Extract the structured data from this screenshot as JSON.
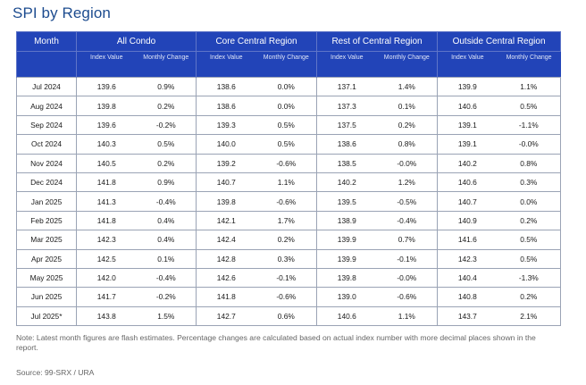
{
  "title": "SPI by Region",
  "headers": {
    "month": "Month",
    "regions": [
      "All Condo",
      "Core Central Region",
      "Rest of Central Region",
      "Outside Central Region"
    ],
    "index_value": "Index Value",
    "monthly_change": "Monthly Change"
  },
  "rows": [
    {
      "month": "Jul 2024",
      "values": [
        "139.6",
        "0.9%",
        "138.6",
        "0.0%",
        "137.1",
        "1.4%",
        "139.9",
        "1.1%"
      ]
    },
    {
      "month": "Aug 2024",
      "values": [
        "139.8",
        "0.2%",
        "138.6",
        "0.0%",
        "137.3",
        "0.1%",
        "140.6",
        "0.5%"
      ]
    },
    {
      "month": "Sep 2024",
      "values": [
        "139.6",
        "-0.2%",
        "139.3",
        "0.5%",
        "137.5",
        "0.2%",
        "139.1",
        "-1.1%"
      ]
    },
    {
      "month": "Oct 2024",
      "values": [
        "140.3",
        "0.5%",
        "140.0",
        "0.5%",
        "138.6",
        "0.8%",
        "139.1",
        "-0.0%"
      ]
    },
    {
      "month": "Nov 2024",
      "values": [
        "140.5",
        "0.2%",
        "139.2",
        "-0.6%",
        "138.5",
        "-0.0%",
        "140.2",
        "0.8%"
      ]
    },
    {
      "month": "Dec 2024",
      "values": [
        "141.8",
        "0.9%",
        "140.7",
        "1.1%",
        "140.2",
        "1.2%",
        "140.6",
        "0.3%"
      ]
    },
    {
      "month": "Jan 2025",
      "values": [
        "141.3",
        "-0.4%",
        "139.8",
        "-0.6%",
        "139.5",
        "-0.5%",
        "140.7",
        "0.0%"
      ]
    },
    {
      "month": "Feb 2025",
      "values": [
        "141.8",
        "0.4%",
        "142.1",
        "1.7%",
        "138.9",
        "-0.4%",
        "140.9",
        "0.2%"
      ]
    },
    {
      "month": "Mar 2025",
      "values": [
        "142.3",
        "0.4%",
        "142.4",
        "0.2%",
        "139.9",
        "0.7%",
        "141.6",
        "0.5%"
      ]
    },
    {
      "month": "Apr 2025",
      "values": [
        "142.5",
        "0.1%",
        "142.8",
        "0.3%",
        "139.9",
        "-0.1%",
        "142.3",
        "0.5%"
      ]
    },
    {
      "month": "May 2025",
      "values": [
        "142.0",
        "-0.4%",
        "142.6",
        "-0.1%",
        "139.8",
        "-0.0%",
        "140.4",
        "-1.3%"
      ]
    },
    {
      "month": "Jun 2025",
      "values": [
        "141.7",
        "-0.2%",
        "141.8",
        "-0.6%",
        "139.0",
        "-0.6%",
        "140.8",
        "0.2%"
      ]
    },
    {
      "month": "Jul 2025*",
      "values": [
        "143.8",
        "1.5%",
        "142.7",
        "0.6%",
        "140.6",
        "1.1%",
        "143.7",
        "2.1%"
      ]
    }
  ],
  "note": "Note: Latest month figures are flash estimates. Percentage changes are calculated based on actual index number with more decimal places shown in the report.",
  "source": "Source: 99-SRX / URA",
  "colors": {
    "header_bg": "#2244b8",
    "title": "#1d4c8f"
  }
}
